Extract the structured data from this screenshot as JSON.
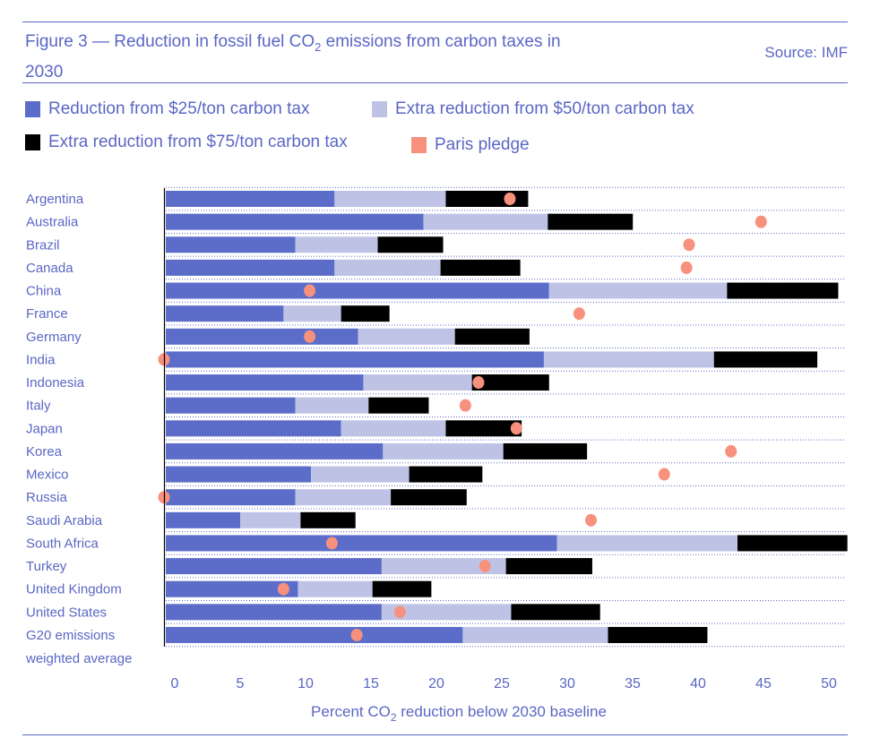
{
  "header": {
    "title_pre": "Figure 3 — Reduction in fossil fuel CO",
    "title_sub": "2",
    "title_post": " emissions from carbon taxes in 2030",
    "source": "Source: IMF"
  },
  "colors": {
    "tax25": "#5b6dc9",
    "tax50": "#bec3e6",
    "tax75": "#000000",
    "paris": "#f7917d",
    "text": "#5a67c4"
  },
  "chart_data": {
    "type": "bar",
    "orientation": "horizontal-stacked",
    "xlabel_pre": "Percent CO",
    "xlabel_sub": "2",
    "xlabel_post": " reduction below 2030 baseline",
    "xlim": [
      0,
      52
    ],
    "xticks": [
      0,
      5,
      10,
      15,
      20,
      25,
      30,
      35,
      40,
      45,
      50
    ],
    "legend": [
      {
        "key": "tax25",
        "label": "Reduction from $25/ton carbon tax"
      },
      {
        "key": "tax50",
        "label": "Extra reduction from $50/ton carbon tax"
      },
      {
        "key": "tax75",
        "label": "Extra reduction from $75/ton carbon tax"
      },
      {
        "key": "paris",
        "label": "Paris pledge"
      }
    ],
    "categories": [
      "Argentina",
      "Australia",
      "Brazil",
      "Canada",
      "China",
      "France",
      "Germany",
      "India",
      "Indonesia",
      "Italy",
      "Japan",
      "Korea",
      "Mexico",
      "Russia",
      "Saudi Arabia",
      "South Africa",
      "Turkey",
      "United Kingdom",
      "United States",
      "G20 emissions weighted average"
    ],
    "series": [
      {
        "name": "Reduction from $25/ton carbon tax",
        "values": [
          12.9,
          19.7,
          9.9,
          12.9,
          29.3,
          9.0,
          14.7,
          28.9,
          15.1,
          9.9,
          13.4,
          16.6,
          11.1,
          9.9,
          5.7,
          29.9,
          16.5,
          10.1,
          16.5,
          22.7
        ]
      },
      {
        "name": "Extra reduction from $50/ton carbon tax",
        "values": [
          8.5,
          9.5,
          6.3,
          8.1,
          13.6,
          4.4,
          7.4,
          13.0,
          8.3,
          5.6,
          8.0,
          9.2,
          7.5,
          7.3,
          4.6,
          13.8,
          9.5,
          5.7,
          9.9,
          11.1
        ]
      },
      {
        "name": "Extra reduction from $75/ton carbon tax",
        "values": [
          6.3,
          6.5,
          5.0,
          6.1,
          8.5,
          3.7,
          5.7,
          7.9,
          5.9,
          4.6,
          5.8,
          6.4,
          5.6,
          5.8,
          4.2,
          8.4,
          6.6,
          4.5,
          6.8,
          7.6
        ]
      }
    ],
    "paris_pledge": [
      26.3,
      45.5,
      40.0,
      39.8,
      11.0,
      31.6,
      11.0,
      0,
      23.9,
      22.9,
      26.8,
      43.2,
      38.1,
      0,
      32.5,
      12.7,
      24.4,
      9.0,
      17.9,
      14.6
    ]
  }
}
